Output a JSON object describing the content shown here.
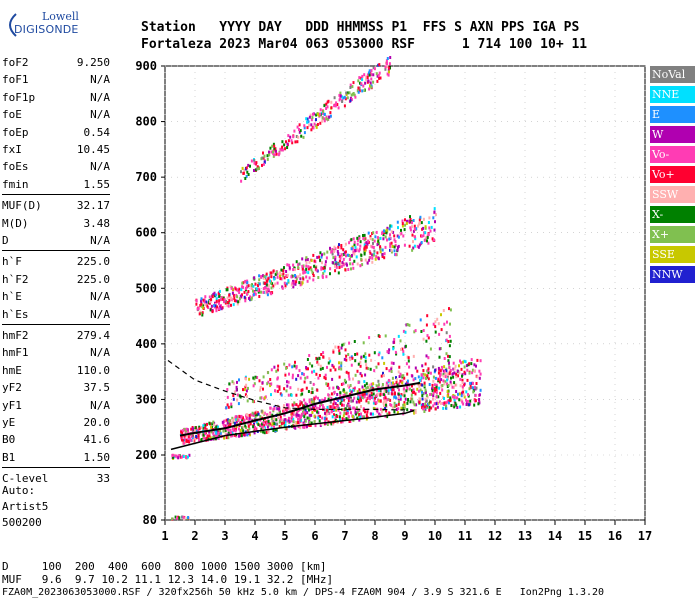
{
  "logo": {
    "top": "Lowell",
    "bottom": "DIGISONDE"
  },
  "header": {
    "row1": "Station   YYYY DAY   DDD HHMMSS P1  FFS S AXN PPS IGA PS",
    "row2": "Fortaleza 2023 Mar04 063 053000 RSF      1 714 100 10+ 11"
  },
  "params": [
    {
      "k": "foF2",
      "v": "9.250"
    },
    {
      "k": "foF1",
      "v": "N/A"
    },
    {
      "k": "foF1p",
      "v": "N/A"
    },
    {
      "k": "foE",
      "v": "N/A"
    },
    {
      "k": "foEp",
      "v": "0.54"
    },
    {
      "k": "fxI",
      "v": "10.45"
    },
    {
      "k": "foEs",
      "v": "N/A"
    },
    {
      "k": "fmin",
      "v": "1.55"
    },
    {
      "k": "MUF(D)",
      "v": "32.17"
    },
    {
      "k": "M(D)",
      "v": "3.48"
    },
    {
      "k": "D",
      "v": "N/A"
    },
    {
      "k": "h`F",
      "v": "225.0"
    },
    {
      "k": "h`F2",
      "v": "225.0"
    },
    {
      "k": "h`E",
      "v": "N/A"
    },
    {
      "k": "h`Es",
      "v": "N/A"
    },
    {
      "k": "hmF2",
      "v": "279.4"
    },
    {
      "k": "hmF1",
      "v": "N/A"
    },
    {
      "k": "hmE",
      "v": "110.0"
    },
    {
      "k": "yF2",
      "v": "37.5"
    },
    {
      "k": "yF1",
      "v": "N/A"
    },
    {
      "k": "yE",
      "v": "20.0"
    },
    {
      "k": "B0",
      "v": "41.6"
    },
    {
      "k": "B1",
      "v": "1.50"
    },
    {
      "k": "C-level",
      "v": "33"
    }
  ],
  "auto": {
    "line1": "Auto:",
    "line2": "Artist5",
    "line3": "500200"
  },
  "legend": [
    {
      "label": "NoVal",
      "color": "#808080"
    },
    {
      "label": "NNE",
      "color": "#00e0ff"
    },
    {
      "label": "E",
      "color": "#1e90ff"
    },
    {
      "label": "W",
      "color": "#b000b0"
    },
    {
      "label": "Vo-",
      "color": "#ff3cb4"
    },
    {
      "label": "Vo+",
      "color": "#ff0030"
    },
    {
      "label": "SSW",
      "color": "#ffb0b0"
    },
    {
      "label": "X-",
      "color": "#008000"
    },
    {
      "label": "X+",
      "color": "#80c050"
    },
    {
      "label": "SSE",
      "color": "#c8c800"
    },
    {
      "label": "NNW",
      "color": "#2020d0"
    }
  ],
  "footer": {
    "d_row": "D     100  200  400  600  800 1000 1500 3000 [km]",
    "muf_row": "MUF   9.6  9.7 10.2 11.1 12.3 14.0 19.1 32.2 [MHz]",
    "file_row": "FZA0M_2023063053000.RSF / 320fx256h 50 kHz 5.0 km / DPS-4 FZA0M 904 / 3.9 S 321.6 E   Ion2Png 1.3.20"
  },
  "chart_data": {
    "type": "scatter",
    "title": "",
    "xlabel": "",
    "ylabel": "",
    "xlim": [
      1,
      17
    ],
    "ylim": [
      80,
      900
    ],
    "x_ticks": [
      1,
      2,
      3,
      4,
      5,
      6,
      7,
      8,
      9,
      10,
      11,
      12,
      13,
      14,
      15,
      16,
      17
    ],
    "y_ticks": [
      80,
      200,
      300,
      400,
      500,
      600,
      700,
      800,
      900
    ],
    "traces": [
      {
        "name": "o-trace",
        "x": [
          1.5,
          2,
          3,
          4,
          5,
          6,
          7,
          8,
          9,
          9.5
        ],
        "y": [
          235,
          240,
          248,
          262,
          275,
          292,
          305,
          318,
          325,
          330
        ]
      },
      {
        "name": "x-trace",
        "x": [
          1.2,
          3,
          5,
          7,
          8,
          9,
          9.3
        ],
        "y": [
          210,
          235,
          250,
          262,
          268,
          275,
          280
        ]
      },
      {
        "name": "profile",
        "x": [
          1.1,
          2,
          3,
          4,
          5,
          6,
          7,
          8,
          9
        ],
        "y": [
          370,
          335,
          315,
          298,
          285,
          282,
          282,
          282,
          281
        ]
      }
    ]
  }
}
